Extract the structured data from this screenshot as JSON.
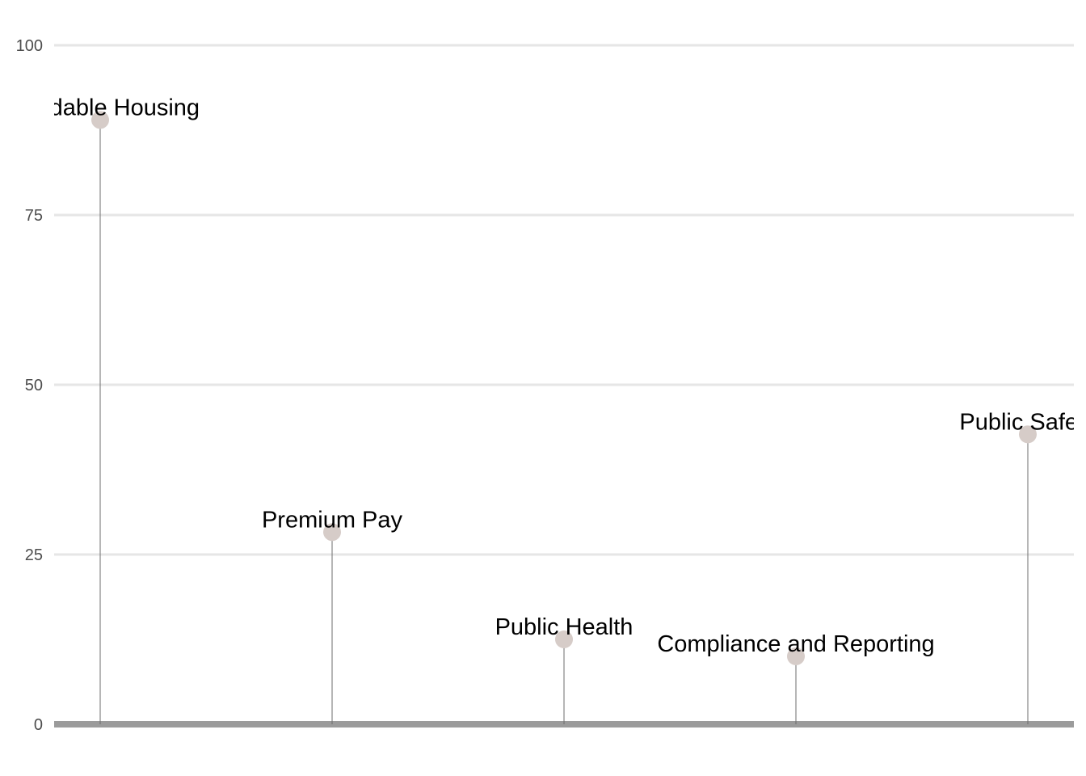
{
  "chart_data": {
    "type": "lollipop",
    "categories": [
      "Affordable Housing",
      "Premium Pay",
      "Public Health",
      "Compliance and Reporting",
      "Public Safety"
    ],
    "values": [
      89,
      28.3,
      12.5,
      10,
      42.7
    ],
    "title": "",
    "xlabel": "",
    "ylabel": "",
    "ylim": [
      0,
      100
    ],
    "yticks": [
      0,
      25,
      50,
      75,
      100
    ],
    "ytick_labels": [
      "0",
      "25",
      "50",
      "75",
      "100"
    ],
    "grid": "horizontal",
    "legend": "none"
  },
  "colors": {
    "point": "#d6ccc8",
    "stem": "#6e6e6e",
    "grid": "#e6e6e6",
    "baseline": "#9b9b9b",
    "tick_text": "#4d4d4d",
    "label_text": "#000000"
  }
}
